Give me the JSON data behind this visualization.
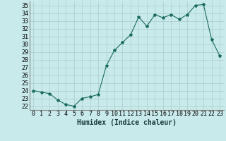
{
  "x": [
    0,
    1,
    2,
    3,
    4,
    5,
    6,
    7,
    8,
    9,
    10,
    11,
    12,
    13,
    14,
    15,
    16,
    17,
    18,
    19,
    20,
    21,
    22,
    23
  ],
  "y": [
    24.0,
    23.8,
    23.6,
    22.8,
    22.2,
    22.0,
    23.0,
    23.2,
    23.5,
    27.2,
    29.2,
    30.2,
    31.2,
    33.5,
    32.3,
    33.8,
    33.4,
    33.8,
    33.2,
    33.8,
    35.0,
    35.1,
    30.6,
    28.5
  ],
  "line_color": "#1a6b5e",
  "marker": "*",
  "bg_color": "#c8eaea",
  "grid_color": "#aacccc",
  "xlabel": "Humidex (Indice chaleur)",
  "ylim": [
    21.5,
    35.5
  ],
  "yticks": [
    22,
    23,
    24,
    25,
    26,
    27,
    28,
    29,
    30,
    31,
    32,
    33,
    34,
    35
  ],
  "xticks": [
    0,
    1,
    2,
    3,
    4,
    5,
    6,
    7,
    8,
    9,
    10,
    11,
    12,
    13,
    14,
    15,
    16,
    17,
    18,
    19,
    20,
    21,
    22,
    23
  ],
  "xlabel_fontsize": 7,
  "tick_fontsize": 6
}
